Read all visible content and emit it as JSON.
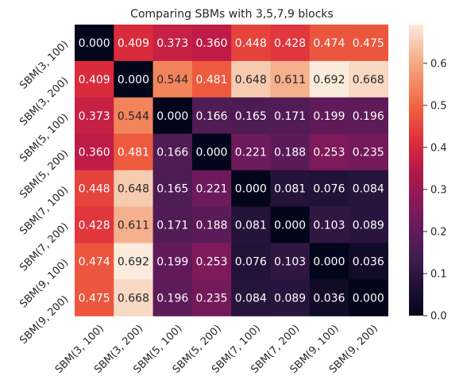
{
  "chart_data": {
    "type": "heatmap",
    "title": "Comparing SBMs with 3,5,7,9 blocks",
    "xlabel": "",
    "ylabel": "",
    "row_labels": [
      "SBM(3, 100)",
      "SBM(3, 200)",
      "SBM(5, 100)",
      "SBM(5, 200)",
      "SBM(7, 100)",
      "SBM(7, 200)",
      "SBM(9, 100)",
      "SBM(9, 200)"
    ],
    "col_labels": [
      "SBM(3, 100)",
      "SBM(3, 200)",
      "SBM(5, 100)",
      "SBM(5, 200)",
      "SBM(7, 100)",
      "SBM(7, 200)",
      "SBM(9, 100)",
      "SBM(9, 200)"
    ],
    "values": [
      [
        0.0,
        0.409,
        0.373,
        0.36,
        0.448,
        0.428,
        0.474,
        0.475
      ],
      [
        0.409,
        0.0,
        0.544,
        0.481,
        0.648,
        0.611,
        0.692,
        0.668
      ],
      [
        0.373,
        0.544,
        0.0,
        0.166,
        0.165,
        0.171,
        0.199,
        0.196
      ],
      [
        0.36,
        0.481,
        0.166,
        0.0,
        0.221,
        0.188,
        0.253,
        0.235
      ],
      [
        0.448,
        0.648,
        0.165,
        0.221,
        0.0,
        0.081,
        0.076,
        0.084
      ],
      [
        0.428,
        0.611,
        0.171,
        0.188,
        0.081,
        0.0,
        0.103,
        0.089
      ],
      [
        0.474,
        0.692,
        0.199,
        0.253,
        0.076,
        0.103,
        0.0,
        0.036
      ],
      [
        0.475,
        0.668,
        0.196,
        0.235,
        0.084,
        0.089,
        0.036,
        0.0
      ]
    ],
    "color_range": [
      0.0,
      0.692
    ],
    "colormap": "rocket",
    "colorbar_ticks": [
      "0.0",
      "0.1",
      "0.2",
      "0.3",
      "0.4",
      "0.5",
      "0.6"
    ],
    "colorbar_tick_values": [
      0.0,
      0.1,
      0.2,
      0.3,
      0.4,
      0.5,
      0.6
    ],
    "annotations": true,
    "grid": false
  }
}
